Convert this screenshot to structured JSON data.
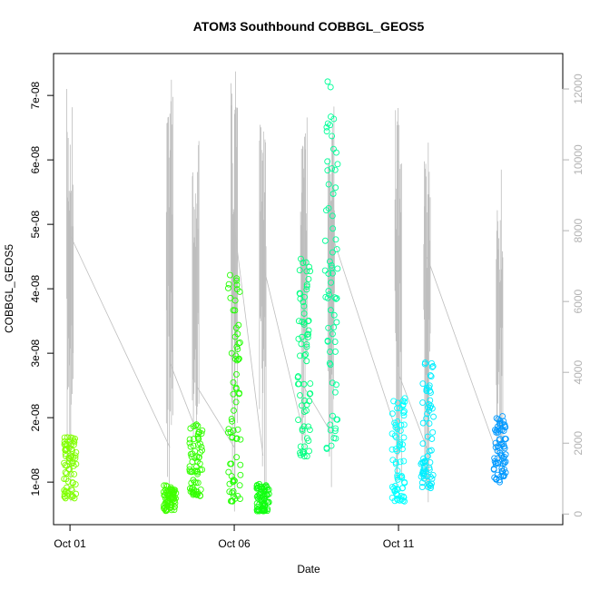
{
  "chart_data": {
    "type": "scatter",
    "title": "ATOM3 Southbound COBBGL_GEOS5",
    "xlabel": "Date",
    "ylabel": "COBBGL_GEOS5",
    "xlim": [
      "2016-09-30T12:00",
      "2016-10-16T00:00"
    ],
    "ylim": [
      3.4e-09,
      7.65e-08
    ],
    "y2lim": [
      -300,
      13000
    ],
    "x_ticks": [
      {
        "at": "2016-10-01",
        "label": "Oct 01"
      },
      {
        "at": "2016-10-06",
        "label": "Oct 06"
      },
      {
        "at": "2016-10-11",
        "label": "Oct 11"
      }
    ],
    "y_ticks": [
      {
        "value": 1e-08,
        "label": "1e-08"
      },
      {
        "value": 2e-08,
        "label": "2e-08"
      },
      {
        "value": 3e-08,
        "label": "3e-08"
      },
      {
        "value": 4e-08,
        "label": "4e-08"
      },
      {
        "value": 5e-08,
        "label": "5e-08"
      },
      {
        "value": 6e-08,
        "label": "6e-08"
      },
      {
        "value": 7e-08,
        "label": "7e-08"
      }
    ],
    "y2_ticks": [
      {
        "value": 0,
        "label": "0"
      },
      {
        "value": 2000,
        "label": "2000"
      },
      {
        "value": 4000,
        "label": "4000"
      },
      {
        "value": 6000,
        "label": "6000"
      },
      {
        "value": 8000,
        "label": "8000"
      },
      {
        "value": 10000,
        "label": "10000"
      },
      {
        "value": 12000,
        "label": "12000"
      }
    ],
    "grid": false,
    "legend": "none",
    "point_style": "open-circle",
    "altitude_color": "#bebebe",
    "flights": [
      {
        "x": "2016-10-01T00:10",
        "y_min": 7.5e-09,
        "y_max": 1.75e-08,
        "color": "#80ff00"
      },
      {
        "x": "2016-10-04T01:00",
        "y_min": 5.5e-09,
        "y_max": 9.5e-09,
        "color": "#40ff00"
      },
      {
        "x": "2016-10-04T20:00",
        "y_min": 7.8e-09,
        "y_max": 1.9e-08,
        "color": "#33ff00"
      },
      {
        "x": "2016-10-06T00:10",
        "y_min": 7e-09,
        "y_max": 4.35e-08,
        "color": "#22ff00"
      },
      {
        "x": "2016-10-06T21:00",
        "y_min": 5.5e-09,
        "y_max": 9.8e-09,
        "color": "#10ff10"
      },
      {
        "x": "2016-10-08T03:00",
        "y_min": 1.4e-08,
        "y_max": 4.5e-08,
        "color": "#00ff80"
      },
      {
        "x": "2016-10-08T23:00",
        "y_min": 1.5e-08,
        "y_max": 7.35e-08,
        "color": "#00ff99"
      },
      {
        "x": "2016-10-11T00:00",
        "y_min": 7e-09,
        "y_max": 2.3e-08,
        "color": "#00ffff"
      },
      {
        "x": "2016-10-11T21:00",
        "y_min": 9e-09,
        "y_max": 2.9e-08,
        "color": "#00eeff"
      },
      {
        "x": "2016-10-14T02:00",
        "y_min": 1e-08,
        "y_max": 2.05e-08,
        "color": "#0099ff"
      }
    ],
    "altitude_segments": [
      {
        "x": "2016-10-01T00:10",
        "alt_max": 12000,
        "alt_min": 0
      },
      {
        "x": "2016-10-04T01:00",
        "alt_max": 12500,
        "alt_min": 0
      },
      {
        "x": "2016-10-04T20:00",
        "alt_max": 10800,
        "alt_min": 900
      },
      {
        "x": "2016-10-06T00:10",
        "alt_max": 12500,
        "alt_min": 0
      },
      {
        "x": "2016-10-06T21:00",
        "alt_max": 11000,
        "alt_min": 0
      },
      {
        "x": "2016-10-08T03:00",
        "alt_max": 12000,
        "alt_min": 500
      },
      {
        "x": "2016-10-08T23:00",
        "alt_max": 11800,
        "alt_min": 600
      },
      {
        "x": "2016-10-11T00:00",
        "alt_max": 11500,
        "alt_min": 500
      },
      {
        "x": "2016-10-11T21:00",
        "alt_max": 10500,
        "alt_min": 300
      },
      {
        "x": "2016-10-14T02:00",
        "alt_max": 10000,
        "alt_min": 0
      }
    ]
  }
}
